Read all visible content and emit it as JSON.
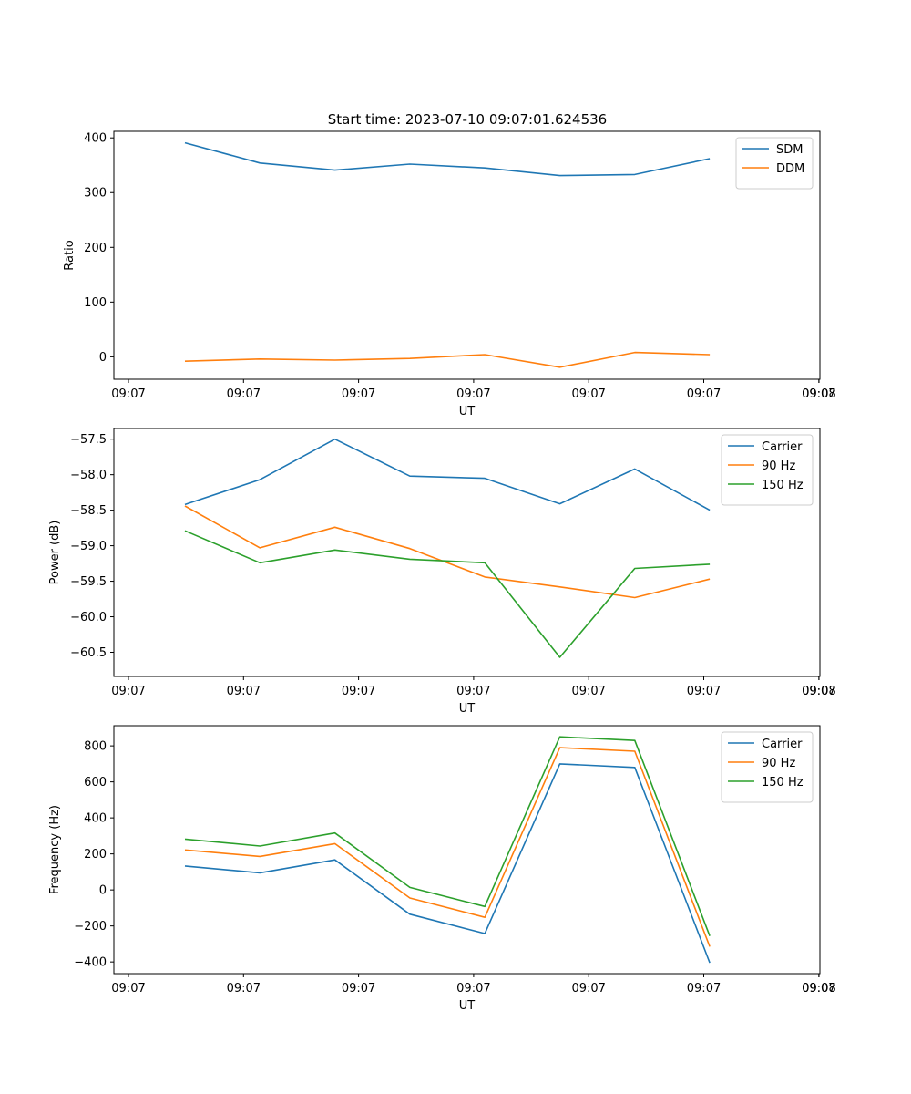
{
  "title": "Start time: 2023-07-10 09:07:01.624536",
  "x_tick_labels": [
    "09:07",
    "09:07",
    "09:07",
    "09:07",
    "09:07",
    "09:07",
    "09:07"
  ],
  "x_end_tick_label": "09:08",
  "colors": {
    "blue": "#1f77b4",
    "orange": "#ff7f0e",
    "green": "#2ca02c"
  },
  "chart_data": [
    {
      "type": "line",
      "xlabel": "UT",
      "ylabel": "Ratio",
      "x": [
        1,
        2,
        3,
        4,
        5,
        6,
        7,
        8
      ],
      "ylim": [
        -41,
        412
      ],
      "yticks": [
        0,
        100,
        200,
        300,
        400
      ],
      "ytick_labels": [
        "0",
        "100",
        "200",
        "300",
        "400"
      ],
      "legend_position": "top-right",
      "series": [
        {
          "name": "SDM",
          "color": "#1f77b4",
          "values": [
            391,
            354,
            341,
            352,
            345,
            331,
            333,
            362
          ]
        },
        {
          "name": "DDM",
          "color": "#ff7f0e",
          "values": [
            -8,
            -4,
            -6,
            -3,
            4,
            -19,
            8,
            4
          ]
        }
      ]
    },
    {
      "type": "line",
      "xlabel": "UT",
      "ylabel": "Power (dB)",
      "x": [
        1,
        2,
        3,
        4,
        5,
        6,
        7,
        8
      ],
      "ylim": [
        -60.84,
        -57.35
      ],
      "yticks": [
        -57.5,
        -58.0,
        -58.5,
        -59.0,
        -59.5,
        -60.0,
        -60.5
      ],
      "ytick_labels": [
        "−57.5",
        "−58.0",
        "−58.5",
        "−59.0",
        "−59.5",
        "−60.0",
        "−60.5"
      ],
      "legend_position": "top-right",
      "series": [
        {
          "name": "Carrier",
          "color": "#1f77b4",
          "values": [
            -58.42,
            -58.07,
            -57.5,
            -58.02,
            -58.05,
            -58.41,
            -57.92,
            -58.5
          ]
        },
        {
          "name": "90 Hz",
          "color": "#ff7f0e",
          "values": [
            -58.44,
            -59.03,
            -58.74,
            -59.04,
            -59.44,
            -59.58,
            -59.73,
            -59.47
          ]
        },
        {
          "name": "150 Hz",
          "color": "#2ca02c",
          "values": [
            -58.79,
            -59.24,
            -59.06,
            -59.19,
            -59.24,
            -60.57,
            -59.32,
            -59.26
          ]
        }
      ]
    },
    {
      "type": "line",
      "xlabel": "UT",
      "ylabel": "Frequency (Hz)",
      "x": [
        1,
        2,
        3,
        4,
        5,
        6,
        7,
        8
      ],
      "ylim": [
        -465,
        912
      ],
      "yticks": [
        -400,
        -200,
        0,
        200,
        400,
        600,
        800
      ],
      "ytick_labels": [
        "−400",
        "−200",
        "0",
        "200",
        "400",
        "600",
        "800"
      ],
      "legend_position": "top-right",
      "series": [
        {
          "name": "Carrier",
          "color": "#1f77b4",
          "values": [
            133,
            95,
            167,
            -135,
            -242,
            700,
            680,
            -405
          ]
        },
        {
          "name": "90 Hz",
          "color": "#ff7f0e",
          "values": [
            222,
            186,
            257,
            -45,
            -152,
            790,
            770,
            -315
          ]
        },
        {
          "name": "150 Hz",
          "color": "#2ca02c",
          "values": [
            282,
            244,
            316,
            14,
            -92,
            850,
            830,
            -256
          ]
        }
      ]
    }
  ]
}
